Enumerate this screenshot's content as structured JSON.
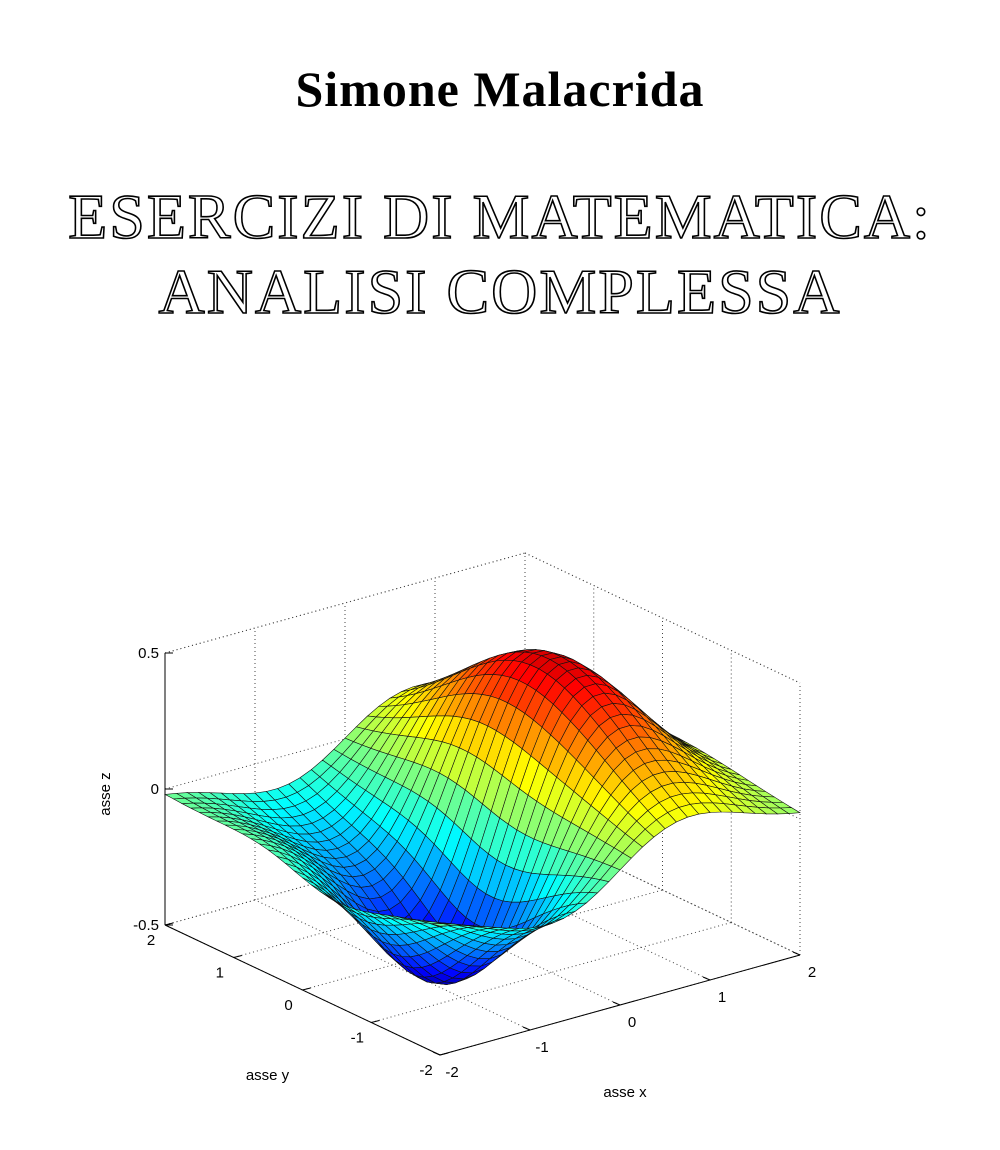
{
  "header": {
    "author": "Simone Malacrida"
  },
  "title": {
    "lines": [
      "ESERCIZI DI MATEMATICA:",
      "ANALISI COMPLESSA"
    ]
  },
  "figure": {
    "type": "surface",
    "xlabel": "asse x",
    "ylabel": "asse y",
    "zlabel": "asse z",
    "xlim": [
      -2,
      2
    ],
    "ylim": [
      -2,
      2
    ],
    "zlim": [
      -0.5,
      0.5
    ],
    "xticks": [
      -2,
      -1,
      0,
      1,
      2
    ],
    "yticks": [
      -2,
      -1,
      0,
      1,
      2
    ],
    "zticks": [
      -0.5,
      0,
      0.5
    ],
    "grid": true
  }
}
